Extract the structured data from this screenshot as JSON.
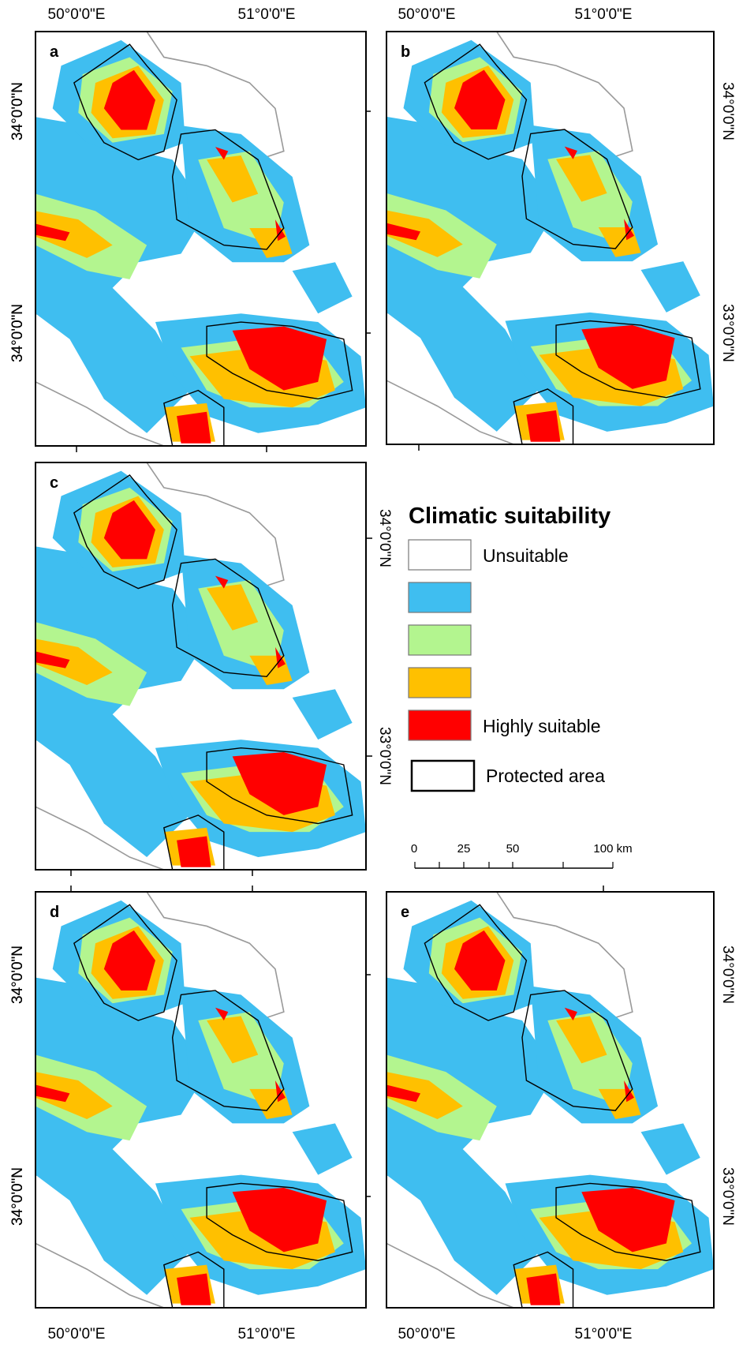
{
  "panels": [
    {
      "label": "a"
    },
    {
      "label": "b"
    },
    {
      "label": "c"
    },
    {
      "label": "d"
    },
    {
      "label": "e"
    }
  ],
  "axis_labels": {
    "lon": [
      "50°0'0\"E",
      "51°0'0\"E"
    ],
    "lat": [
      "34°0'0\"N",
      "33°0'0\"N"
    ]
  },
  "legend": {
    "title": "Climatic suitability",
    "items": [
      "Unsuitable",
      "Highly suitable",
      "Protected area"
    ]
  },
  "scale_bar": {
    "labels": [
      "0",
      "25",
      "50",
      "100 km"
    ]
  }
}
